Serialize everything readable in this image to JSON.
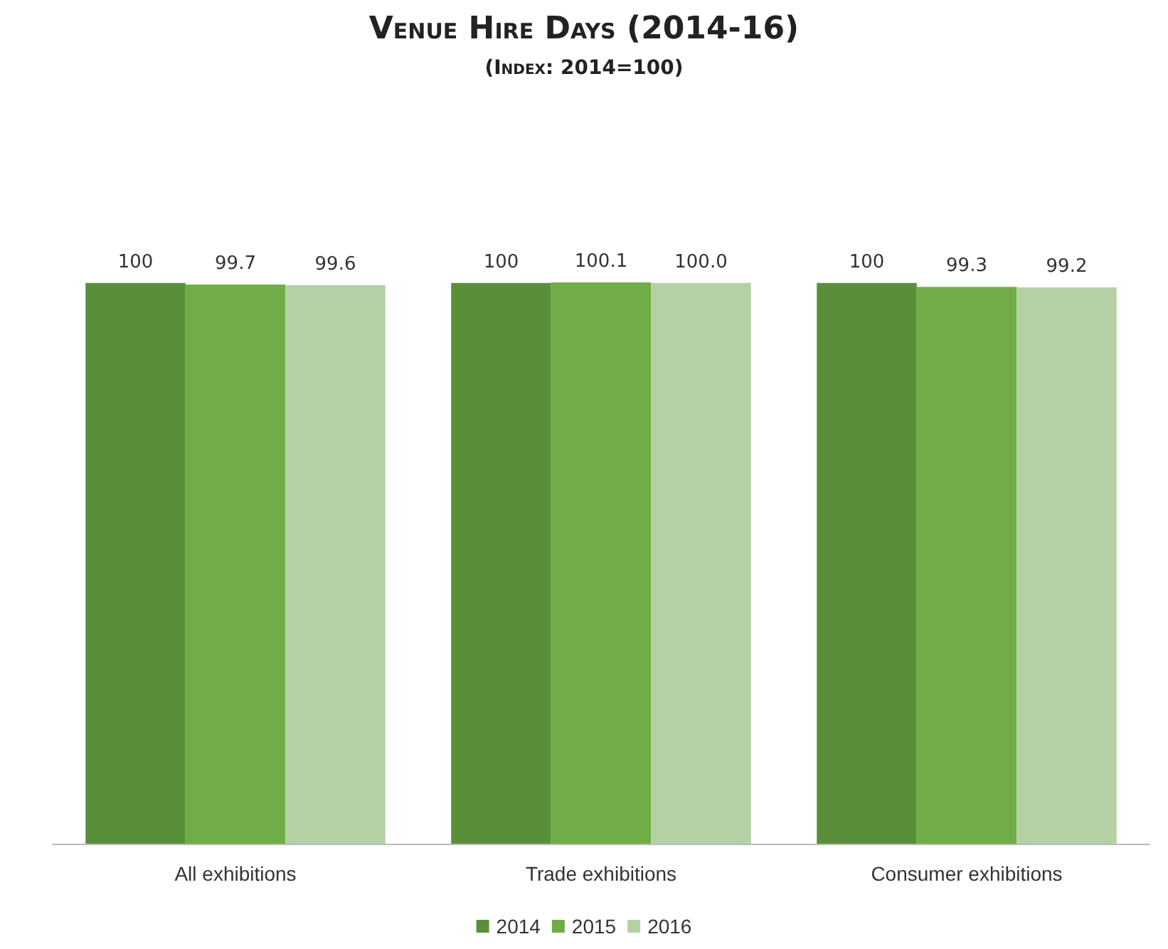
{
  "chart_data": {
    "type": "bar",
    "title": "Venue Hire Days (2014-16)",
    "subtitle": "(Index: 2014=100)",
    "categories": [
      "All exhibitions",
      "Trade exhibitions",
      "Consumer exhibitions"
    ],
    "series": [
      {
        "name": "2014",
        "color": "#5a8f3a",
        "values": [
          100,
          100,
          100
        ],
        "value_labels": [
          "100",
          "100",
          "100"
        ]
      },
      {
        "name": "2015",
        "color": "#70ad47",
        "values": [
          99.7,
          100.1,
          99.3
        ],
        "value_labels": [
          "99.7",
          "100.1",
          "99.3"
        ]
      },
      {
        "name": "2016",
        "color": "#b5d1a4",
        "values": [
          99.6,
          100.0,
          99.2
        ],
        "value_labels": [
          "99.6",
          "100.0",
          "99.2"
        ]
      }
    ],
    "tick_labels": "x",
    "legend": "bottom"
  }
}
